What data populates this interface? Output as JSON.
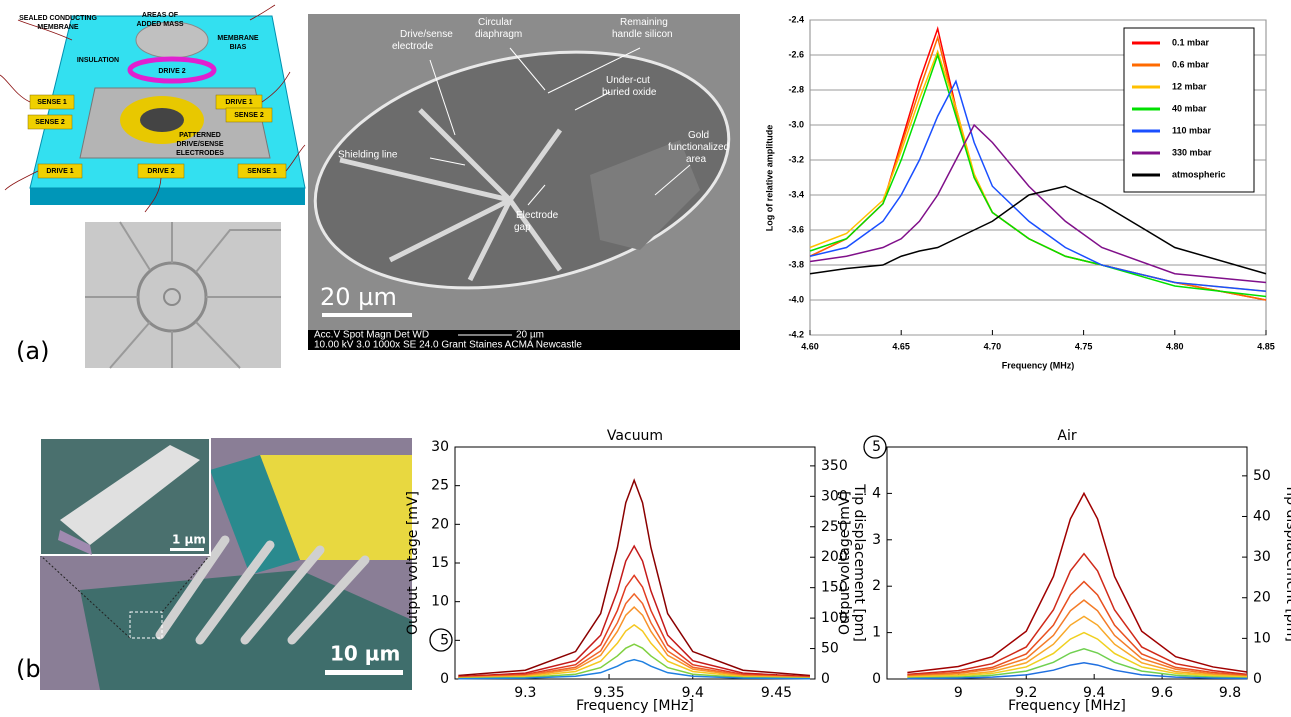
{
  "chart_data": [
    {
      "type": "line",
      "xlabel": "Frequency (MHz)",
      "ylabel": "Log of relative amplitude",
      "x": [
        4.6,
        4.62,
        4.64,
        4.65,
        4.66,
        4.67,
        4.68,
        4.69,
        4.7,
        4.72,
        4.74,
        4.76,
        4.8,
        4.85
      ],
      "series": [
        {
          "name": "0.1 mbar",
          "color": "#ff0000",
          "values": [
            -3.75,
            -3.65,
            -3.45,
            -3.1,
            -2.75,
            -2.45,
            -2.9,
            -3.3,
            -3.5,
            -3.65,
            -3.75,
            -3.8,
            -3.9,
            -4.0
          ]
        },
        {
          "name": "0.6 mbar",
          "color": "#ff6a00",
          "values": [
            -3.75,
            -3.65,
            -3.45,
            -3.12,
            -2.8,
            -2.5,
            -2.92,
            -3.3,
            -3.5,
            -3.65,
            -3.75,
            -3.8,
            -3.9,
            -4.0
          ]
        },
        {
          "name": "12 mbar",
          "color": "#ffc000",
          "values": [
            -3.7,
            -3.62,
            -3.43,
            -3.15,
            -2.85,
            -2.58,
            -2.9,
            -3.28,
            -3.5,
            -3.65,
            -3.75,
            -3.8,
            -3.9,
            -3.95
          ]
        },
        {
          "name": "40 mbar",
          "color": "#00e000",
          "values": [
            -3.72,
            -3.65,
            -3.45,
            -3.2,
            -2.9,
            -2.6,
            -2.95,
            -3.3,
            -3.5,
            -3.65,
            -3.75,
            -3.8,
            -3.92,
            -3.98
          ]
        },
        {
          "name": "110 mbar",
          "color": "#1a4fff",
          "values": [
            -3.75,
            -3.7,
            -3.55,
            -3.4,
            -3.2,
            -2.95,
            -2.75,
            -3.1,
            -3.35,
            -3.55,
            -3.7,
            -3.8,
            -3.9,
            -3.95
          ]
        },
        {
          "name": "330 mbar",
          "color": "#80108a",
          "values": [
            -3.78,
            -3.75,
            -3.7,
            -3.65,
            -3.55,
            -3.4,
            -3.2,
            -3.0,
            -3.1,
            -3.35,
            -3.55,
            -3.7,
            -3.85,
            -3.9
          ]
        },
        {
          "name": "atmospheric",
          "color": "#000000",
          "values": [
            -3.85,
            -3.82,
            -3.8,
            -3.75,
            -3.72,
            -3.7,
            -3.65,
            -3.6,
            -3.55,
            -3.4,
            -3.35,
            -3.45,
            -3.7,
            -3.85
          ]
        }
      ],
      "xlim": [
        4.6,
        4.85
      ],
      "xticks": [
        {
          "value": 4.6,
          "label": "4.60"
        },
        4.65,
        {
          "value": 4.7,
          "label": "4.70"
        },
        4.75,
        {
          "value": 4.8,
          "label": "4.80"
        },
        4.85
      ],
      "ylim": [
        -4.2,
        -2.4
      ],
      "yticks": [
        -4.2,
        {
          "value": -4,
          "label": "-4.0"
        },
        -3.8,
        -3.6,
        -3.4,
        -3.2,
        {
          "value": -3,
          "label": "-3.0"
        },
        -2.8,
        -2.6,
        -2.4
      ],
      "grid": true,
      "legend": "upper right"
    },
    {
      "type": "line",
      "title": "Vacuum",
      "xlabel": "Frequency [MHz]",
      "ylabel": "Output voltage [mV]",
      "y2label": "Tip displacement [pm]",
      "x": [
        9.26,
        9.3,
        9.33,
        9.345,
        9.355,
        9.36,
        9.365,
        9.37,
        9.375,
        9.385,
        9.4,
        9.43,
        9.47
      ],
      "series": [
        {
          "color": "#8b0000",
          "values": [
            0.45,
            1.13,
            3.55,
            8.46,
            17.01,
            22.8,
            25.7,
            22.8,
            17.01,
            8.46,
            3.55,
            1.13,
            0.45
          ]
        },
        {
          "color": "#c41a1a",
          "values": [
            0.3,
            0.76,
            2.37,
            5.66,
            11.39,
            15.26,
            17.2,
            15.26,
            11.39,
            5.66,
            2.37,
            0.76,
            0.3
          ]
        },
        {
          "color": "#e03a20",
          "values": [
            0.23,
            0.59,
            1.85,
            4.41,
            8.87,
            11.89,
            13.4,
            11.89,
            8.87,
            4.41,
            1.85,
            0.59,
            0.23
          ]
        },
        {
          "color": "#f0642a",
          "values": [
            0.19,
            0.48,
            1.52,
            3.62,
            7.28,
            9.76,
            11,
            9.76,
            7.28,
            3.62,
            1.52,
            0.48,
            0.19
          ]
        },
        {
          "color": "#f8922a",
          "values": [
            0.16,
            0.41,
            1.28,
            3.06,
            6.16,
            8.25,
            9.3,
            8.25,
            6.16,
            3.06,
            1.28,
            0.41,
            0.16
          ]
        },
        {
          "color": "#f5c820",
          "values": [
            0.12,
            0.31,
            0.97,
            2.3,
            4.63,
            6.21,
            7,
            6.21,
            4.63,
            2.3,
            0.97,
            0.31,
            0.12
          ]
        },
        {
          "color": "#80d040",
          "values": [
            0.08,
            0.2,
            0.62,
            1.48,
            2.98,
            3.99,
            4.5,
            3.99,
            2.98,
            1.48,
            0.62,
            0.2,
            0.08
          ]
        },
        {
          "color": "#2080e0",
          "values": [
            0.04,
            0.11,
            0.35,
            0.82,
            1.66,
            2.22,
            2.5,
            2.22,
            1.66,
            0.82,
            0.35,
            0.11,
            0.04
          ]
        }
      ],
      "xlim": [
        9.258,
        9.473
      ],
      "xticks": [
        9.3,
        9.35,
        9.4,
        9.45
      ],
      "ylim": [
        0,
        30
      ],
      "yticks": [
        0,
        5,
        10,
        15,
        20,
        25,
        30
      ],
      "y2lim": [
        0,
        381
      ],
      "y2ticks": [
        0,
        50,
        100,
        150,
        200,
        250,
        300,
        350
      ]
    },
    {
      "type": "line",
      "title": "Air",
      "xlabel": "Frequency [MHz]",
      "ylabel": "Output voltage [mV]",
      "y2label": "Tip displacement [pm]",
      "x": [
        8.85,
        9.0,
        9.1,
        9.2,
        9.28,
        9.33,
        9.37,
        9.41,
        9.46,
        9.54,
        9.64,
        9.75,
        9.85
      ],
      "series": [
        {
          "color": "#a00000",
          "values": [
            0.14,
            0.27,
            0.48,
            1.03,
            2.21,
            3.45,
            4,
            3.45,
            2.21,
            1.03,
            0.48,
            0.26,
            0.15
          ]
        },
        {
          "color": "#d02a1a",
          "values": [
            0.1,
            0.18,
            0.33,
            0.69,
            1.49,
            2.33,
            2.7,
            2.33,
            1.49,
            0.69,
            0.33,
            0.18,
            0.1
          ]
        },
        {
          "color": "#e85020",
          "values": [
            0.08,
            0.14,
            0.25,
            0.54,
            1.16,
            1.81,
            2.1,
            1.81,
            1.16,
            0.54,
            0.25,
            0.14,
            0.08
          ]
        },
        {
          "color": "#f47c28",
          "values": [
            0.06,
            0.12,
            0.21,
            0.44,
            0.94,
            1.47,
            1.7,
            1.47,
            0.94,
            0.44,
            0.21,
            0.11,
            0.06
          ]
        },
        {
          "color": "#f8a82a",
          "values": [
            0.05,
            0.09,
            0.16,
            0.35,
            0.75,
            1.16,
            1.35,
            1.16,
            0.75,
            0.35,
            0.16,
            0.09,
            0.05
          ]
        },
        {
          "color": "#f0d020",
          "values": [
            0.04,
            0.07,
            0.12,
            0.26,
            0.55,
            0.86,
            1,
            0.86,
            0.55,
            0.26,
            0.12,
            0.07,
            0.04
          ]
        },
        {
          "color": "#70d050",
          "values": [
            0.02,
            0.04,
            0.08,
            0.17,
            0.36,
            0.56,
            0.65,
            0.56,
            0.36,
            0.17,
            0.08,
            0.04,
            0.02
          ]
        },
        {
          "color": "#2070e0",
          "values": [
            0.01,
            0.02,
            0.04,
            0.09,
            0.19,
            0.3,
            0.35,
            0.3,
            0.19,
            0.09,
            0.04,
            0.02,
            0.01
          ]
        }
      ],
      "xlim": [
        8.79,
        9.85
      ],
      "xticks": [
        9,
        9.2,
        9.4,
        9.6,
        9.8
      ],
      "ylim": [
        0,
        5
      ],
      "yticks": [
        0,
        1,
        2,
        3,
        4,
        5
      ],
      "y2lim": [
        0,
        57.1
      ],
      "y2ticks": [
        0,
        10,
        20,
        30,
        40,
        50
      ]
    }
  ],
  "figure": {
    "panel_labels": [
      "(a)",
      "(b)"
    ],
    "schematic": {
      "labels": [
        [
          "SEALED CONDUCTING",
          "MEMBRANE"
        ],
        [
          "AREAS OF",
          "ADDED MASS"
        ],
        [
          "MEMBRANE",
          "BIAS"
        ],
        [
          "INSULATION"
        ],
        [
          "DRIVE 2"
        ],
        [
          "SENSE 1"
        ],
        [
          "DRIVE 1"
        ],
        [
          "SENSE 2"
        ],
        [
          "SENSE 2"
        ],
        [
          "PATTERNED",
          "DRIVE/SENSE",
          "ELECTRODES"
        ],
        [
          "DRIVE 1"
        ],
        [
          "DRIVE 2"
        ],
        [
          "SENSE 1"
        ]
      ]
    },
    "sem": {
      "annotations": [
        [
          "Drive/sense",
          "electrode"
        ],
        [
          "Circular",
          "diaphragm"
        ],
        [
          "Remaining",
          "handle silicon"
        ],
        [
          "Under-cut",
          "buried oxide"
        ],
        [
          "Gold",
          "functionalized",
          "area"
        ],
        [
          "Shielding line"
        ],
        [
          "Electrode",
          "gap"
        ]
      ],
      "scale_bar": "20 µm",
      "info": [
        "Acc.V  Spot  Magn  Det  WD",
        "10.00 kV 3.0  1000x  SE  24.0   Grant Staines ACMA Newcastle"
      ],
      "info_scale": "20 µm"
    },
    "cantilever": {
      "scale_bar": "10 µm",
      "inset_scale_bar": "1 µm"
    }
  }
}
